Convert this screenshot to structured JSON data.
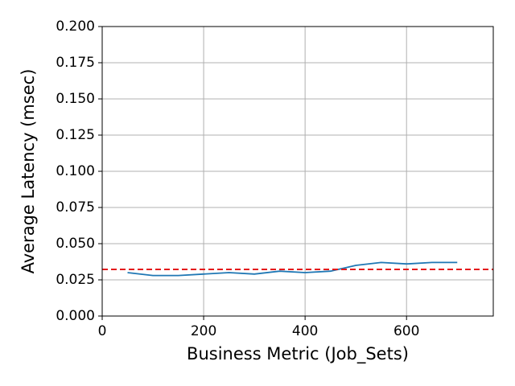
{
  "chart_data": {
    "type": "line",
    "x_label": "Business Metric (Job_Sets)",
    "y_label": "Average Latency (msec)",
    "x": [
      50,
      100,
      150,
      200,
      250,
      300,
      350,
      400,
      450,
      500,
      550,
      600,
      650,
      700
    ],
    "series": [
      {
        "color": "#1f77b4",
        "values": [
          0.03,
          0.028,
          0.028,
          0.029,
          0.03,
          0.029,
          0.031,
          0.03,
          0.031,
          0.035,
          0.037,
          0.036,
          0.037,
          0.037
        ]
      }
    ],
    "reference_line": {
      "value": 0.0322,
      "color": "#e41a1c"
    },
    "xlim": [
      0,
      771
    ],
    "ylim": [
      0,
      0.2
    ],
    "xticks": [
      0,
      200,
      400,
      600
    ],
    "yticks": [
      {
        "value": 0,
        "label": "0.000"
      },
      {
        "value": 0.025,
        "label": "0.025"
      },
      {
        "value": 0.05,
        "label": "0.050"
      },
      {
        "value": 0.075,
        "label": "0.075"
      },
      {
        "value": 0.1,
        "label": "0.100"
      },
      {
        "value": 0.125,
        "label": "0.125"
      },
      {
        "value": 0.15,
        "label": "0.150"
      },
      {
        "value": 0.175,
        "label": "0.175"
      },
      {
        "value": 0.2,
        "label": "0.200"
      }
    ],
    "grid": true
  }
}
